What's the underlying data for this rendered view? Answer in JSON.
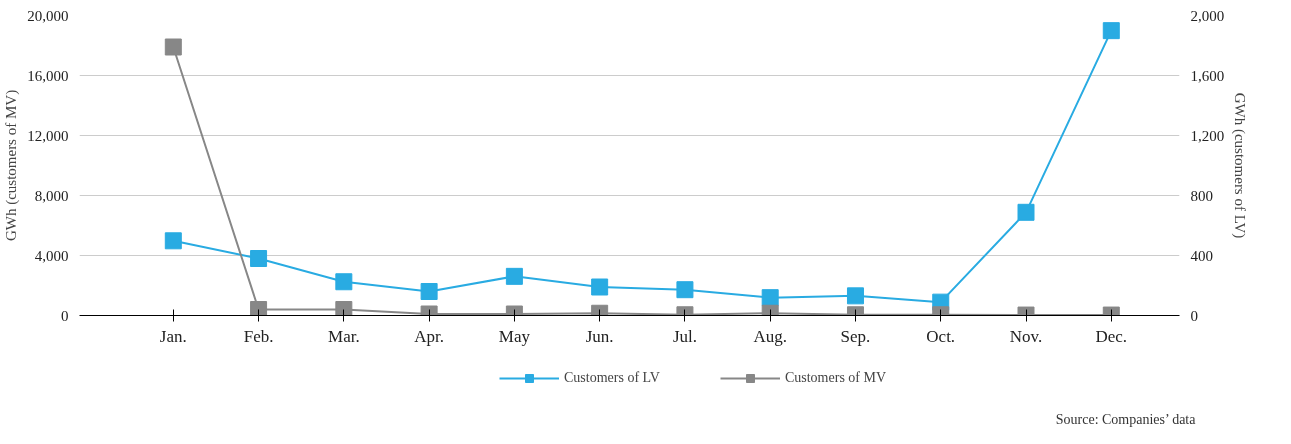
{
  "chart_data": {
    "type": "line",
    "categories": [
      "Jan.",
      "Feb.",
      "Mar.",
      "Apr.",
      "May",
      "Jun.",
      "Jul.",
      "Aug.",
      "Sep.",
      "Oct.",
      "Nov.",
      "Dec."
    ],
    "series": [
      {
        "name": "Customers of LV",
        "color": "#29abe2",
        "axis": "y2",
        "values": [
          498,
          380,
          225,
          160,
          261,
          190,
          172,
          119,
          131,
          89,
          688,
          1899
        ]
      },
      {
        "name": "Customers of MV",
        "color": "#878787",
        "values": [
          17900,
          400,
          400,
          100,
          100,
          150,
          50,
          150,
          50,
          50,
          30,
          30
        ]
      }
    ],
    "ylabel": "GWh (customers of MV)",
    "y2label": "GWh (customers of LV)",
    "ylim": [
      0,
      20000
    ],
    "yticks": [
      0,
      {
        "value": 4000,
        "label": "4,000"
      },
      {
        "value": 8000,
        "label": "8,000"
      },
      {
        "value": 12000,
        "label": "12,000"
      },
      {
        "value": 16000,
        "label": "16,000"
      },
      {
        "value": 20000,
        "label": "20,000"
      }
    ],
    "y2lim": [
      0,
      2000
    ],
    "y2ticks": [
      0,
      400,
      800,
      {
        "value": 1200,
        "label": "1,200"
      },
      {
        "value": 1600,
        "label": "1,600"
      },
      {
        "value": 2000,
        "label": "2,000"
      }
    ],
    "grid": "y",
    "legend": "bottom",
    "marker": "square",
    "line_style": "solid",
    "annotations": [
      "Source: Companies’ data"
    ]
  }
}
